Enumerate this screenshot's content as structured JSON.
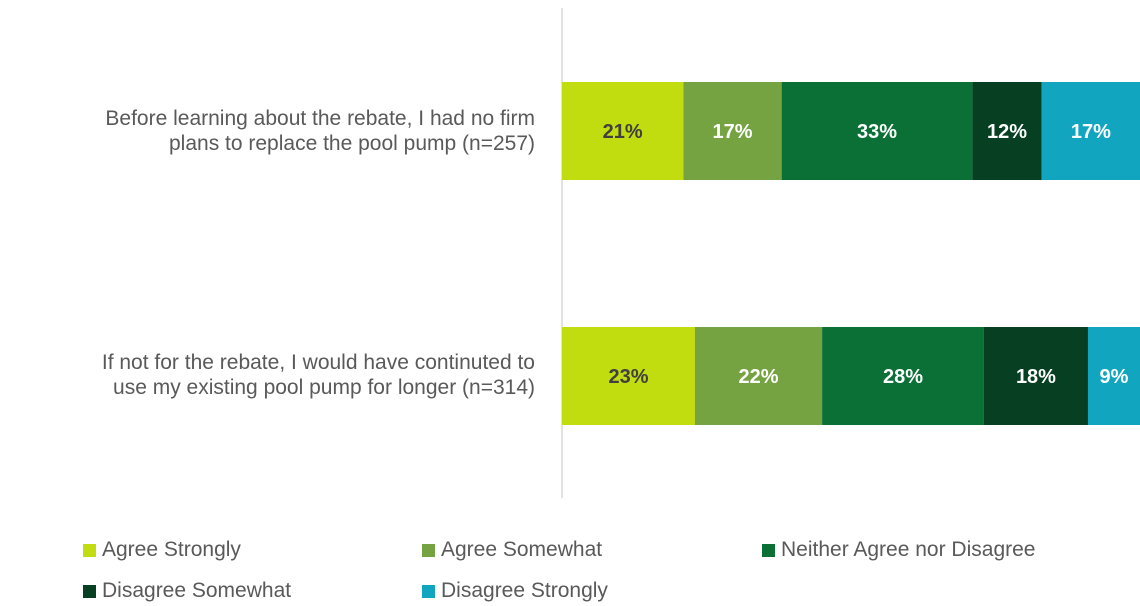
{
  "chart_data": {
    "type": "bar",
    "orientation": "horizontal",
    "stacked": true,
    "xlim": [
      0,
      100
    ],
    "categories": [
      [
        "Before learning about the rebate, I had no firm",
        "plans to replace the pool pump (n=257)"
      ],
      [
        "If not for the rebate, I would have continuted to",
        "use my existing pool pump for longer (n=314)"
      ]
    ],
    "series": [
      {
        "name": "Agree Strongly",
        "color": "#c2dd0f",
        "label_color": "#404040",
        "values": [
          21,
          23
        ],
        "labels": [
          "21%",
          "23%"
        ]
      },
      {
        "name": "Agree Somewhat",
        "color": "#76a342",
        "label_color": "#ffffff",
        "values": [
          17,
          22
        ],
        "labels": [
          "17%",
          "22%"
        ]
      },
      {
        "name": "Neither Agree nor Disagree",
        "color": "#0a7035",
        "label_color": "#ffffff",
        "values": [
          33,
          28
        ],
        "labels": [
          "33%",
          "28%"
        ]
      },
      {
        "name": "Disagree Somewhat",
        "color": "#063f22",
        "label_color": "#ffffff",
        "values": [
          12,
          18
        ],
        "labels": [
          "12%",
          "18%"
        ]
      },
      {
        "name": "Disagree Strongly",
        "color": "#11a5c0",
        "label_color": "#ffffff",
        "values": [
          17,
          9
        ],
        "labels": [
          "17%",
          "9%"
        ]
      }
    ],
    "legend_position": "bottom",
    "grid": false
  }
}
